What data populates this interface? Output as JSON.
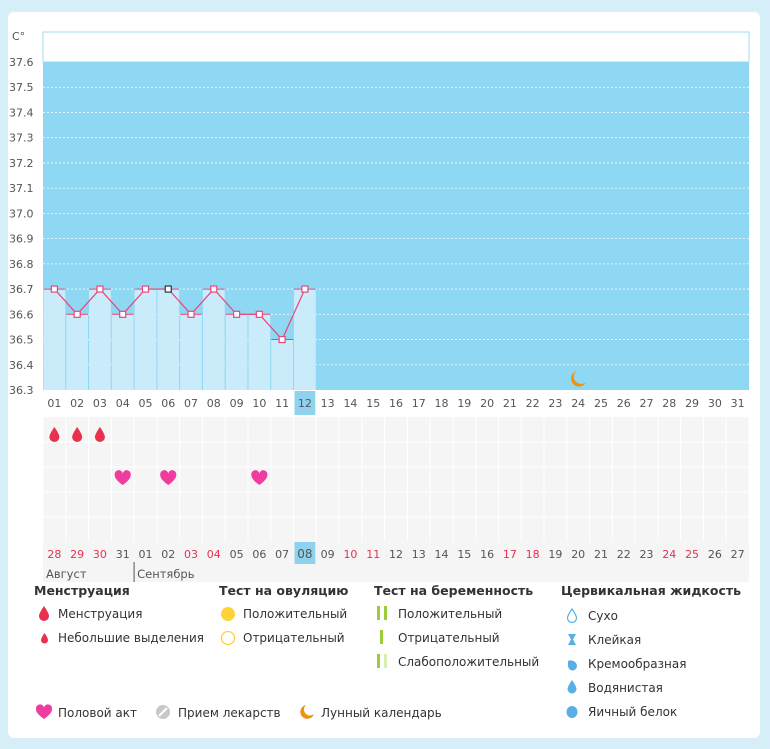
{
  "chart_data": {
    "type": "line",
    "y_unit": "C°",
    "ylim": [
      36.3,
      37.6
    ],
    "y_ticks": [
      "37.6",
      "37.5",
      "37.4",
      "37.3",
      "37.2",
      "37.1",
      "37.0",
      "36.9",
      "36.8",
      "36.7",
      "36.6",
      "36.5",
      "36.4",
      "36.3"
    ],
    "cycle_days": [
      "01",
      "02",
      "03",
      "04",
      "05",
      "06",
      "07",
      "08",
      "09",
      "10",
      "11",
      "12",
      "13",
      "14",
      "15",
      "16",
      "17",
      "18",
      "19",
      "20",
      "21",
      "22",
      "23",
      "24",
      "25",
      "26",
      "27",
      "28",
      "29",
      "30",
      "31"
    ],
    "current_day_index": 11,
    "temperatures": [
      36.7,
      36.6,
      36.7,
      36.6,
      36.7,
      36.7,
      36.6,
      36.7,
      36.6,
      36.6,
      36.5,
      36.7
    ],
    "moon_day_index": 23,
    "menstruation_days": [
      0,
      1,
      2
    ],
    "intercourse_days": [
      3,
      5,
      9
    ],
    "calendar_days": [
      "28",
      "29",
      "30",
      "31",
      "01",
      "02",
      "03",
      "04",
      "05",
      "06",
      "07",
      "08",
      "09",
      "10",
      "11",
      "12",
      "13",
      "14",
      "15",
      "16",
      "17",
      "18",
      "19",
      "20",
      "21",
      "22",
      "23",
      "24",
      "25",
      "26",
      "27"
    ],
    "calendar_red_indices": [
      0,
      1,
      2,
      6,
      7,
      13,
      14,
      20,
      21,
      27,
      28
    ],
    "calendar_today_index": 11,
    "months": [
      {
        "label": "Август",
        "start_index": 0
      },
      {
        "label": "Сентябрь",
        "start_index": 4
      }
    ],
    "colors": {
      "fill": "#8fd8f4",
      "bar": "#c9ebfa",
      "line": "#e8477a",
      "today": "#8fd2ee",
      "red_text": "#e8304f",
      "moon": "#f0920a"
    }
  },
  "legend": {
    "menstruation": {
      "title": "Менструация",
      "items": [
        "Менструация",
        "Небольшие выделения"
      ]
    },
    "ovulation_test": {
      "title": "Тест на овуляцию",
      "items": [
        "Положительный",
        "Отрицательный"
      ]
    },
    "pregnancy_test": {
      "title": "Тест на беременность",
      "items": [
        "Положительный",
        "Отрицательный",
        "Слабоположительный"
      ]
    },
    "cervical_fluid": {
      "title": "Цервикальная жидкость",
      "items": [
        "Сухо",
        "Клейкая",
        "Кремообразная",
        "Водянистая",
        "Яичный белок"
      ]
    },
    "bottom": {
      "intercourse": "Половой акт",
      "medication": "Прием лекарств",
      "moon": "Лунный календарь"
    }
  }
}
